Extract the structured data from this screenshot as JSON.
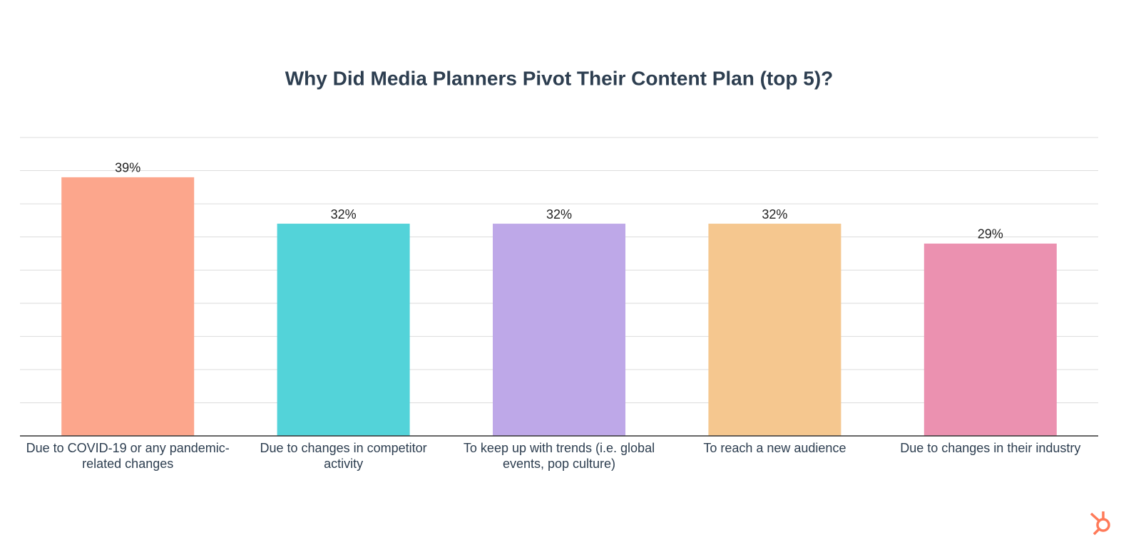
{
  "chart_data": {
    "type": "bar",
    "title": "Why Did Media Planners Pivot Their Content Plan (top 5)?",
    "categories": [
      "Due to COVID-19 or any pandemic-related changes",
      "Due to changes in competitor activity",
      "To keep up with trends (i.e. global events, pop culture)",
      "To reach a new audience",
      "Due to changes in their industry"
    ],
    "values": [
      39,
      32,
      32,
      32,
      29
    ],
    "value_labels": [
      "39%",
      "32%",
      "32%",
      "32%",
      "29%"
    ],
    "colors": [
      "#fca68c",
      "#53d3d9",
      "#bea8e8",
      "#f5c78f",
      "#eb91b0"
    ],
    "ylim": [
      0,
      45
    ],
    "yticks": [
      0,
      5,
      10,
      15,
      20,
      25,
      30,
      35,
      40,
      45
    ],
    "grid": true
  }
}
